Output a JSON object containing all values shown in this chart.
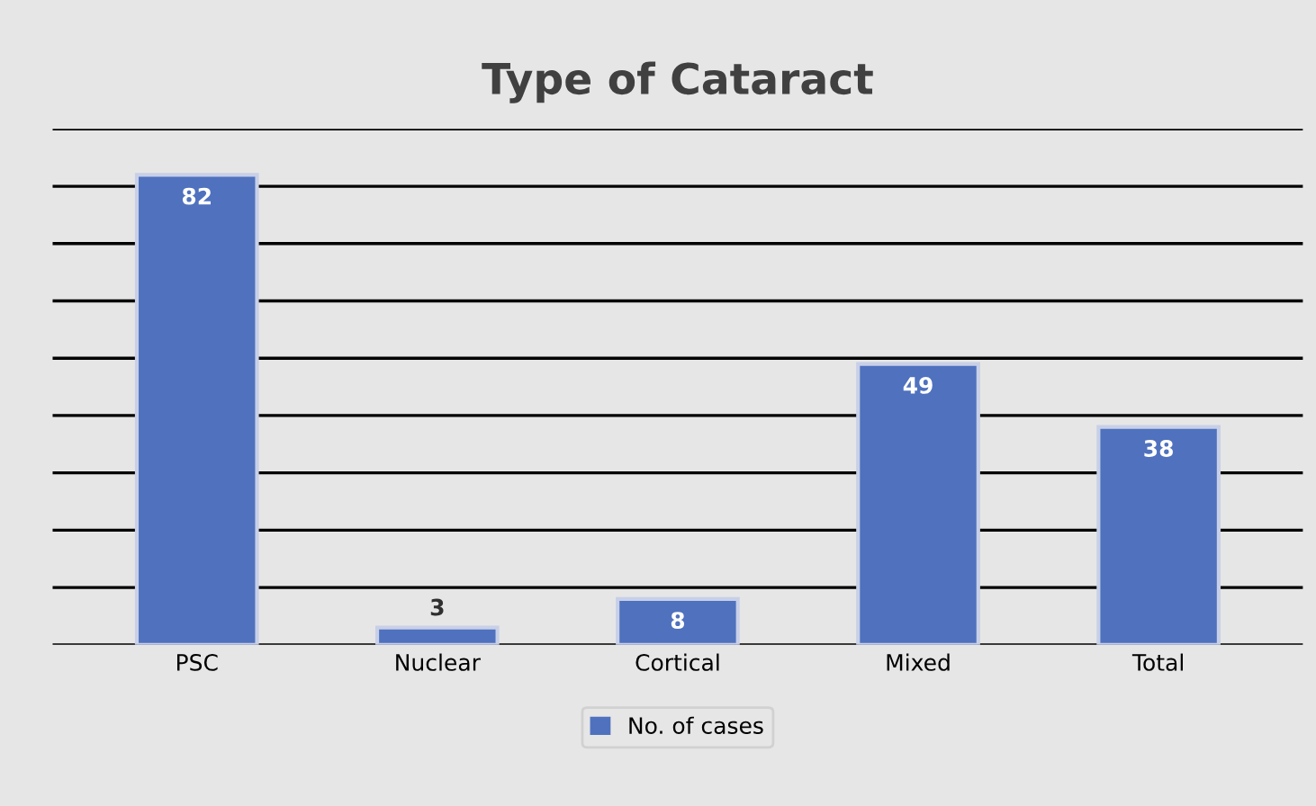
{
  "chart_data": {
    "type": "bar",
    "title": "Type of Cataract",
    "categories": [
      "PSC",
      "Nuclear",
      "Cortical",
      "Mixed",
      "Total"
    ],
    "series": [
      {
        "name": "No. of cases",
        "color": "#4f71be",
        "values": [
          82,
          3,
          8,
          49,
          38
        ]
      }
    ],
    "ylim": [
      0,
      90
    ],
    "yticks": [
      {
        "value": 0,
        "label": null
      },
      {
        "value": 10,
        "label": null
      },
      {
        "value": 20,
        "label": null
      },
      {
        "value": 30,
        "label": null
      },
      {
        "value": 40,
        "label": null
      },
      {
        "value": 50,
        "label": null
      },
      {
        "value": 60,
        "label": null
      },
      {
        "value": 70,
        "label": null
      },
      {
        "value": 80,
        "label": null
      },
      {
        "value": 90,
        "label": null
      }
    ],
    "grid": "y",
    "legend": "bottom",
    "data_labels": true,
    "tick_labels": "x"
  }
}
